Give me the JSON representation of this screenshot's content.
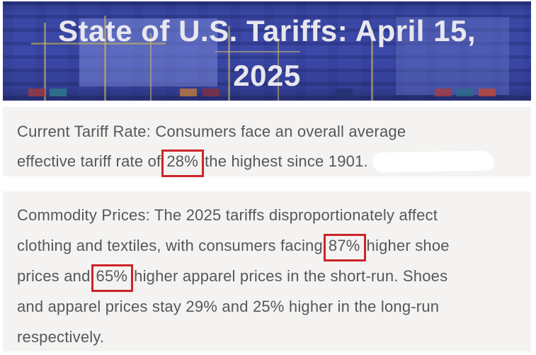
{
  "page_title": "State of U.S. Tariffs: April 15, 2025",
  "banner": {
    "title_line1": "State of U.S. Tariffs: April 15,",
    "title_line2": "2025",
    "background_color": "#3a47a3",
    "title_color": "#e8e7ee",
    "photo": "aerial-port-containers-photo"
  },
  "colors": {
    "highlight_box_red": "#cb2428",
    "section_background": "#f4f3f1",
    "body_text": "#57565a"
  },
  "sections": [
    {
      "id": "current-tariff-rate",
      "lines": [
        [
          {
            "t": "Current Tariff Rate: Consumers face an overall average"
          }
        ],
        [
          {
            "t": "effective tariff rate of"
          },
          {
            "t": "28%",
            "boxed": true
          },
          {
            "t": "the highest since 1901. "
          },
          {
            "redaction": true
          }
        ]
      ]
    },
    {
      "id": "commodity-prices",
      "lines": [
        [
          {
            "t": "Commodity Prices: The 2025 tariffs disproportionately affect"
          }
        ],
        [
          {
            "t": "clothing and textiles, with consumers facing"
          },
          {
            "t": "87%",
            "boxed": true
          },
          {
            "t": "higher shoe"
          }
        ],
        [
          {
            "t": "prices and"
          },
          {
            "t": "65%",
            "boxed": true
          },
          {
            "t": "higher apparel prices in the short-run. Shoes"
          }
        ],
        [
          {
            "t": "and apparel prices stay 29% and 25% higher in the long-run"
          }
        ],
        [
          {
            "t": "respectively."
          }
        ]
      ]
    }
  ]
}
